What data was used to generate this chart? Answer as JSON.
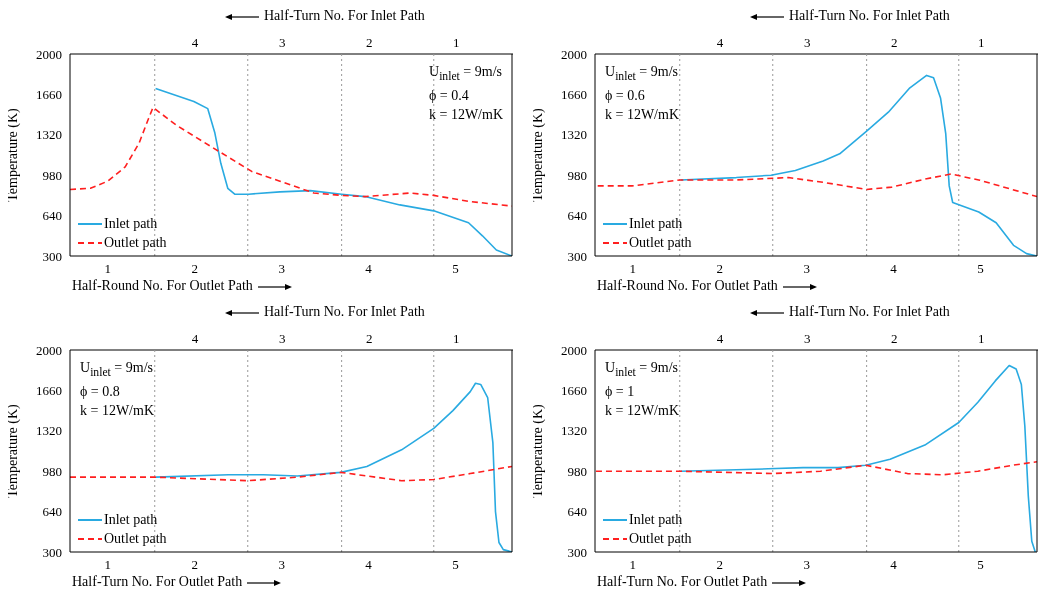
{
  "chart_data": [
    {
      "type": "line",
      "ylabel": "Temperature (K)",
      "xlabel": "Half-Round No. For Outlet Path",
      "x2label": "Half-Turn No. For Inlet Path",
      "annotations": [
        "U$_{inlet}$ = 9m/s",
        "ϕ = 0.4",
        "k = 12W/mK"
      ],
      "xlim": [
        0.565,
        5.65
      ],
      "xticks": [
        1,
        2,
        3,
        4,
        5
      ],
      "x2lim": [
        5.435,
        0.35
      ],
      "x2ticks": [
        4,
        3,
        2,
        1
      ],
      "ylim": [
        300,
        2000
      ],
      "yticks": [
        300,
        640,
        980,
        1320,
        1660,
        2000
      ],
      "ref_lines": [
        {
          "axis": "x",
          "value": 1.54,
          "color": "#999999",
          "line_style": "dotted"
        },
        {
          "axis": "x",
          "value": 2.61,
          "color": "#999999",
          "line_style": "dotted"
        },
        {
          "axis": "x",
          "value": 3.69,
          "color": "#999999",
          "line_style": "dotted"
        },
        {
          "axis": "x",
          "value": 4.75,
          "color": "#999999",
          "line_style": "dotted"
        }
      ],
      "legend": "bottom left",
      "series": [
        {
          "name": "Inlet path",
          "color": "#29aae1",
          "line_style": "solid",
          "x": [
            1.55,
            1.99,
            2.15,
            2.23,
            2.3,
            2.38,
            2.46,
            2.62,
            2.98,
            3.33,
            3.69,
            3.96,
            4.36,
            4.75,
            5.15,
            5.31,
            5.47,
            5.65
          ],
          "values": [
            1710,
            1600,
            1540,
            1340,
            1080,
            870,
            820,
            820,
            840,
            850,
            820,
            800,
            730,
            680,
            580,
            470,
            350,
            300
          ]
        },
        {
          "name": "Outlet path",
          "color": "#ff1f1f",
          "line_style": "dashed",
          "x": [
            0.565,
            0.8,
            1.0,
            1.2,
            1.36,
            1.47,
            1.52,
            1.79,
            2.19,
            2.66,
            2.98,
            3.37,
            3.69,
            3.96,
            4.48,
            4.75,
            5.15,
            5.65
          ],
          "values": [
            860,
            870,
            930,
            1050,
            1250,
            1460,
            1550,
            1400,
            1220,
            1010,
            930,
            830,
            810,
            800,
            830,
            810,
            760,
            720
          ]
        }
      ]
    },
    {
      "type": "line",
      "ylabel": "Temperature (K)",
      "xlabel": "Half-Round No. For Outlet Path",
      "x2label": "Half-Turn No. For Inlet Path",
      "annotations": [
        "U$_{inlet}$ = 9m/s",
        "ϕ = 0.6",
        "k = 12W/mK"
      ],
      "xlim": [
        0.565,
        5.65
      ],
      "xticks": [
        1,
        2,
        3,
        4,
        5
      ],
      "x2lim": [
        5.435,
        0.35
      ],
      "x2ticks": [
        4,
        3,
        2,
        1
      ],
      "ylim": [
        300,
        2000
      ],
      "yticks": [
        300,
        640,
        980,
        1320,
        1660,
        2000
      ],
      "ref_lines": [
        {
          "axis": "x",
          "value": 1.54,
          "color": "#999999",
          "line_style": "dotted"
        },
        {
          "axis": "x",
          "value": 2.61,
          "color": "#999999",
          "line_style": "dotted"
        },
        {
          "axis": "x",
          "value": 3.69,
          "color": "#999999",
          "line_style": "dotted"
        },
        {
          "axis": "x",
          "value": 4.75,
          "color": "#999999",
          "line_style": "dotted"
        }
      ],
      "legend": "bottom left",
      "series": [
        {
          "name": "Inlet path",
          "color": "#29aae1",
          "line_style": "solid",
          "x": [
            1.55,
            2.19,
            2.59,
            2.87,
            3.19,
            3.38,
            3.69,
            3.94,
            4.18,
            4.38,
            4.46,
            4.54,
            4.6,
            4.64,
            4.68,
            4.98,
            5.18,
            5.38,
            5.53,
            5.65
          ],
          "values": [
            940,
            960,
            980,
            1020,
            1100,
            1160,
            1350,
            1510,
            1710,
            1820,
            1800,
            1630,
            1330,
            890,
            750,
            670,
            580,
            390,
            320,
            300
          ]
        },
        {
          "name": "Outlet path",
          "color": "#ff1f1f",
          "line_style": "dashed",
          "x": [
            0.596,
            0.99,
            1.54,
            2.19,
            2.79,
            3.19,
            3.69,
            3.98,
            4.38,
            4.66,
            4.98,
            5.65
          ],
          "values": [
            890,
            890,
            940,
            940,
            960,
            920,
            860,
            880,
            950,
            990,
            940,
            800
          ]
        }
      ]
    },
    {
      "type": "line",
      "ylabel": "Temperature (K)",
      "xlabel": "Half-Turn No. For Outlet Path",
      "x2label": "Half-Turn No. For Inlet Path",
      "annotations": [
        "U$_{inlet}$ = 9m/s",
        "ϕ = 0.8",
        "k = 12W/mK"
      ],
      "xlim": [
        0.565,
        5.65
      ],
      "xticks": [
        1,
        2,
        3,
        4,
        5
      ],
      "x2lim": [
        5.435,
        0.35
      ],
      "x2ticks": [
        4,
        3,
        2,
        1
      ],
      "ylim": [
        300,
        2000
      ],
      "yticks": [
        300,
        640,
        980,
        1320,
        1660,
        2000
      ],
      "ref_lines": [
        {
          "axis": "x",
          "value": 1.54,
          "color": "#999999",
          "line_style": "dotted"
        },
        {
          "axis": "x",
          "value": 2.61,
          "color": "#999999",
          "line_style": "dotted"
        },
        {
          "axis": "x",
          "value": 3.69,
          "color": "#999999",
          "line_style": "dotted"
        },
        {
          "axis": "x",
          "value": 4.75,
          "color": "#999999",
          "line_style": "dotted"
        }
      ],
      "legend": "bottom left",
      "series": [
        {
          "name": "Inlet path",
          "color": "#29aae1",
          "line_style": "solid",
          "x": [
            1.55,
            2.39,
            2.79,
            3.18,
            3.68,
            3.98,
            4.38,
            4.75,
            4.97,
            5.17,
            5.23,
            5.29,
            5.37,
            5.43,
            5.46,
            5.5,
            5.55,
            5.65
          ],
          "values": [
            930,
            950,
            950,
            940,
            970,
            1020,
            1160,
            1340,
            1490,
            1650,
            1720,
            1710,
            1600,
            1220,
            640,
            380,
            320,
            300
          ]
        },
        {
          "name": "Outlet path",
          "color": "#ff1f1f",
          "line_style": "dashed",
          "x": [
            0.565,
            1.54,
            2.61,
            3.18,
            3.68,
            3.98,
            4.38,
            4.75,
            5.17,
            5.65
          ],
          "values": [
            930,
            930,
            900,
            930,
            970,
            940,
            900,
            910,
            960,
            1020
          ]
        }
      ]
    },
    {
      "type": "line",
      "ylabel": "Temperature (K)",
      "xlabel": "Half-Turn No. For Outlet Path",
      "x2label": "Half-Turn No. For Inlet Path",
      "annotations": [
        "U$_{inlet}$ = 9m/s",
        "ϕ = 1",
        "k = 12W/mK"
      ],
      "xlim": [
        0.565,
        5.65
      ],
      "xticks": [
        1,
        2,
        3,
        4,
        5
      ],
      "x2lim": [
        5.435,
        0.35
      ],
      "x2ticks": [
        4,
        3,
        2,
        1
      ],
      "ylim": [
        300,
        2000
      ],
      "yticks": [
        300,
        640,
        980,
        1320,
        1660,
        2000
      ],
      "ref_lines": [
        {
          "axis": "x",
          "value": 1.54,
          "color": "#999999",
          "line_style": "dotted"
        },
        {
          "axis": "x",
          "value": 2.61,
          "color": "#999999",
          "line_style": "dotted"
        },
        {
          "axis": "x",
          "value": 3.69,
          "color": "#999999",
          "line_style": "dotted"
        },
        {
          "axis": "x",
          "value": 4.75,
          "color": "#999999",
          "line_style": "dotted"
        }
      ],
      "legend": "bottom left",
      "series": [
        {
          "name": "Inlet path",
          "color": "#29aae1",
          "line_style": "solid",
          "x": [
            1.55,
            2.56,
            2.96,
            3.36,
            3.68,
            3.96,
            4.36,
            4.75,
            4.97,
            5.17,
            5.33,
            5.41,
            5.47,
            5.51,
            5.55,
            5.59,
            5.63
          ],
          "values": [
            980,
            1000,
            1010,
            1010,
            1030,
            1080,
            1200,
            1390,
            1560,
            1740,
            1870,
            1840,
            1710,
            1360,
            770,
            390,
            300
          ]
        },
        {
          "name": "Outlet path",
          "color": "#ff1f1f",
          "line_style": "dashed",
          "x": [
            0.576,
            1.54,
            2.61,
            3.16,
            3.68,
            4.16,
            4.57,
            4.97,
            5.37,
            5.65
          ],
          "values": [
            980,
            980,
            960,
            980,
            1030,
            960,
            950,
            980,
            1030,
            1060
          ]
        }
      ]
    }
  ]
}
